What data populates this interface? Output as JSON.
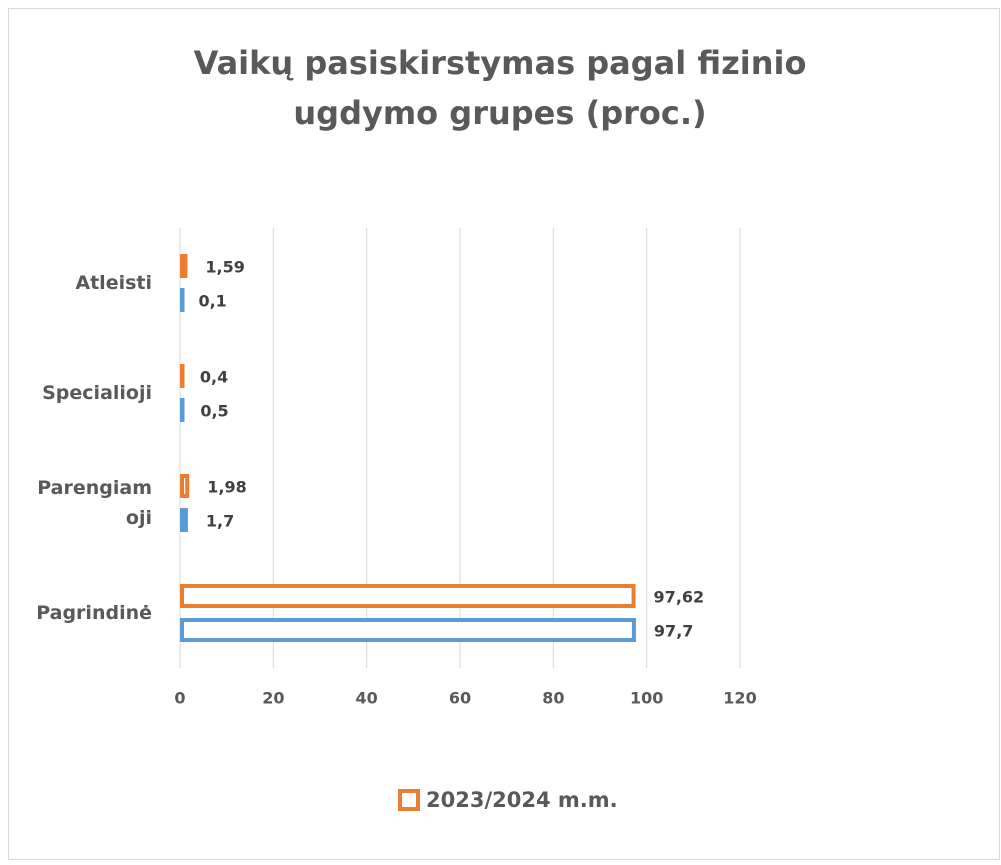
{
  "chart_data": {
    "type": "hbar",
    "title": "Vaikų pasiskirstymas pagal fizinio ugdymo grupes (proc.)",
    "categories": [
      "Pagrindinė",
      "Parengiamoji",
      "Specialioji",
      "Atleisti"
    ],
    "series": [
      {
        "name": "2023/2024 m.m.",
        "color": "#ed7d31",
        "values": [
          97.62,
          1.98,
          0.4,
          1.59
        ],
        "value_labels": [
          "97,62",
          "1,98",
          "0,4",
          "1,59"
        ]
      },
      {
        "color": "#5b9bd5",
        "values": [
          97.7,
          1.7,
          0.5,
          0.1
        ],
        "value_labels": [
          "97,7",
          "1,7",
          "0,5",
          "0,1"
        ]
      }
    ],
    "xlim": [
      0,
      120
    ],
    "xticks": [
      0,
      20,
      40,
      60,
      80,
      100,
      120
    ],
    "grid": true,
    "legend": "bottom"
  }
}
